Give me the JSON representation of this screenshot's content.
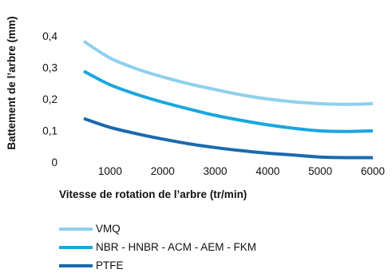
{
  "chart_data": {
    "type": "line",
    "xlabel": "Vitesse de rotation de l’arbre (tr/min)",
    "ylabel": "Battement de l’arbre (mm)",
    "xlim": [
      500,
      6000
    ],
    "ylim": [
      0,
      0.4
    ],
    "x_ticks": [
      "1000",
      "2000",
      "3000",
      "4000",
      "5000",
      "6000"
    ],
    "y_ticks": [
      "0",
      "0,1",
      "0,2",
      "0,3",
      "0,4"
    ],
    "grid": false,
    "legend_position": "bottom",
    "series": [
      {
        "name": "VMQ",
        "color": "#8fd0ee",
        "x": [
          500,
          1000,
          1500,
          2000,
          2500,
          3000,
          3500,
          4000,
          4500,
          5000,
          5500,
          6000
        ],
        "y": [
          0.383,
          0.33,
          0.296,
          0.27,
          0.248,
          0.23,
          0.213,
          0.2,
          0.191,
          0.185,
          0.183,
          0.185
        ]
      },
      {
        "name": "NBR - HNBR - ACM - AEM - FKM",
        "color": "#1ba6df",
        "x": [
          500,
          1000,
          1500,
          2000,
          2500,
          3000,
          3500,
          4000,
          4500,
          5000,
          5500,
          6000
        ],
        "y": [
          0.288,
          0.245,
          0.215,
          0.19,
          0.168,
          0.148,
          0.132,
          0.118,
          0.107,
          0.099,
          0.097,
          0.099
        ]
      },
      {
        "name": "PTFE",
        "color": "#1a6aad",
        "x": [
          500,
          1000,
          1500,
          2000,
          2500,
          3000,
          3500,
          4000,
          4500,
          5000,
          5500,
          6000
        ],
        "y": [
          0.138,
          0.11,
          0.09,
          0.073,
          0.058,
          0.046,
          0.036,
          0.028,
          0.022,
          0.016,
          0.014,
          0.014
        ]
      }
    ]
  }
}
